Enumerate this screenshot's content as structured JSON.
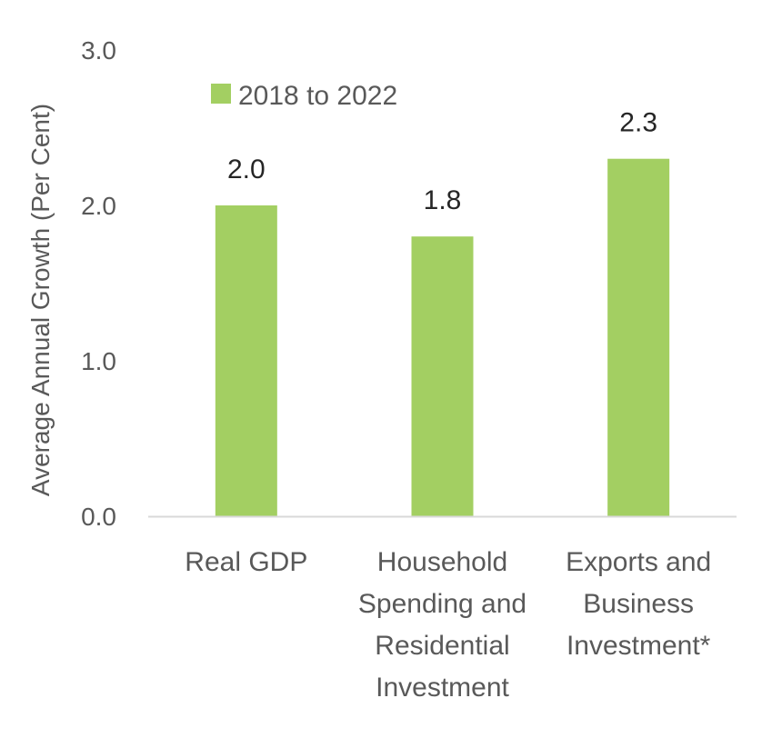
{
  "chart_data": {
    "type": "bar",
    "title": "",
    "xlabel": "",
    "ylabel": "Average Annual Growth (Per Cent)",
    "ylim": [
      0,
      3
    ],
    "yticks": [
      "0.0",
      "1.0",
      "2.0",
      "3.0"
    ],
    "categories": [
      [
        "Real GDP"
      ],
      [
        "Household",
        "Spending and",
        "Residential",
        "Investment"
      ],
      [
        "Exports and",
        "Business",
        "Investment*"
      ]
    ],
    "series": [
      {
        "name": "2018 to 2022",
        "values": [
          2.0,
          1.8,
          2.3
        ],
        "labels": [
          "2.0",
          "1.8",
          "2.3"
        ],
        "color": "#a3cf62"
      }
    ],
    "legend": "top-left",
    "grid": false,
    "axis_color": "#d9d9d9"
  }
}
